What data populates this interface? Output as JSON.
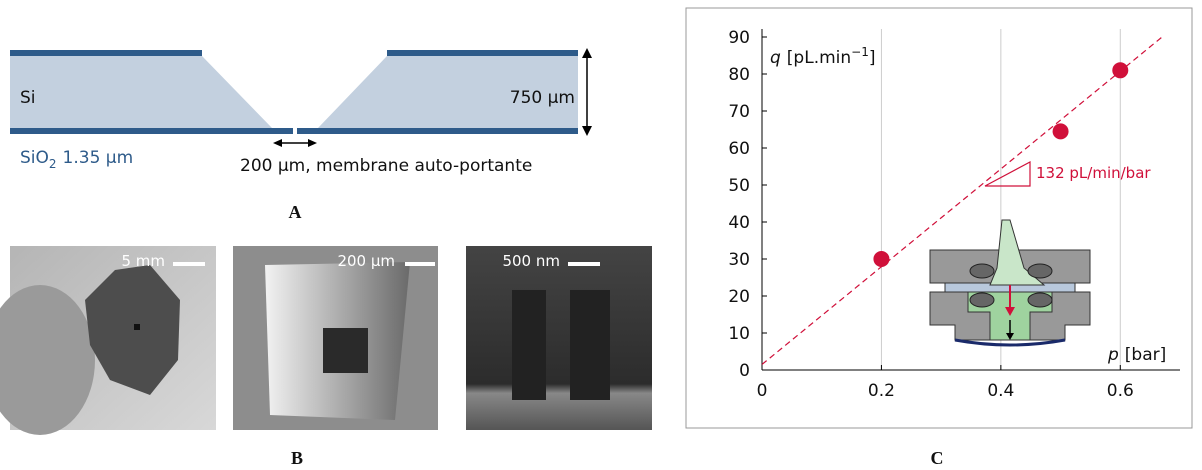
{
  "panel_a": {
    "label": "A",
    "si": "Si",
    "thickness": "750 µm",
    "oxide": {
      "text": "SiO",
      "sub": "2",
      "thickness": "1.35 µm"
    },
    "opening": "200 µm, membrane auto-portante"
  },
  "panel_b": {
    "label": "B",
    "scale_bars": [
      "5 mm",
      "200 µm",
      "500 nm"
    ]
  },
  "chart_data": {
    "type": "scatter",
    "label": "C",
    "x": [
      0.2,
      0.5,
      0.6
    ],
    "values": [
      30,
      64.5,
      81
    ],
    "color": "#d0103a",
    "xlim": [
      0,
      0.7
    ],
    "ylim": [
      0,
      90
    ],
    "xticks": [
      0,
      0.2,
      0.4,
      0.6
    ],
    "yticks": [
      0,
      10,
      20,
      30,
      40,
      50,
      60,
      70,
      80,
      90
    ],
    "grid": "x",
    "xlabel": {
      "var": "p",
      "unit": "[bar]"
    },
    "ylabel": {
      "var": "q",
      "unit": "[pL.min",
      "sup": "−1",
      "close": "]"
    },
    "fit": {
      "x": [
        0,
        0.67
      ],
      "values": [
        1.5,
        90
      ],
      "label": "132 pL/min/bar",
      "style": "dashed"
    }
  }
}
